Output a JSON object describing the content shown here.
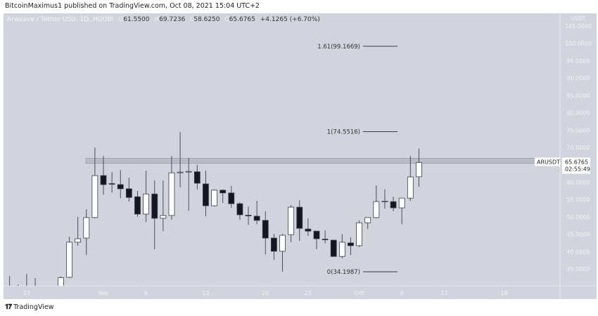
{
  "publisher_line": "BitcoinMaximus1 published on TradingView.com, Oct 08, 2021 15:04 UTC+2",
  "legend": {
    "symbol": "Arweave / Tether USD, 1D, HUOBI",
    "o_label": "O",
    "o": "61.5500",
    "h_label": "H",
    "h": "69.7236",
    "l_label": "L",
    "l": "58.6250",
    "c_label": "C",
    "c": "65.6765",
    "change": "+4.1265 (+6.70%)"
  },
  "price_label": {
    "ticker": "ARUSDT",
    "price": "65.6765",
    "countdown": "02:55:49"
  },
  "footer": {
    "brand": "TradingView",
    "logo_text": "TV"
  },
  "colors": {
    "background": "#d2d4dd",
    "up_body": "#ffffff",
    "down_body": "#131722",
    "wick": "#4a4e5a",
    "zone": "#b9bcc6"
  },
  "chart_data": {
    "type": "candlestick",
    "title": "",
    "ylabel": "USDT",
    "ylim": [
      30.2,
      108.5
    ],
    "y_ticks": [
      "105.0000",
      "100.0000",
      "95.0000",
      "90.0000",
      "85.0000",
      "80.0000",
      "75.0000",
      "70.0000",
      "60.0000",
      "55.0000",
      "50.0000",
      "45.0000",
      "40.0000",
      "35.0000"
    ],
    "x_ticks": [
      {
        "date": "2021-08-23",
        "label": "23"
      },
      {
        "date": "2021-09-01",
        "label": "Sep"
      },
      {
        "date": "2021-09-06",
        "label": "6"
      },
      {
        "date": "2021-09-13",
        "label": "13"
      },
      {
        "date": "2021-09-20",
        "label": "20"
      },
      {
        "date": "2021-09-25",
        "label": "25"
      },
      {
        "date": "2021-10-01",
        "label": "Oct"
      },
      {
        "date": "2021-10-06",
        "label": "6"
      },
      {
        "date": "2021-10-11",
        "label": "11"
      },
      {
        "date": "2021-10-18",
        "label": "18"
      }
    ],
    "resistance_zone": [
      65.4,
      66.9
    ],
    "fib_levels": [
      {
        "label": "1.61(99.1669)",
        "value": 99.1669
      },
      {
        "label": "1(74.5516)",
        "value": 74.5516
      },
      {
        "label": "0(34.1987)",
        "value": 34.1987
      }
    ],
    "candles": [
      {
        "date": "2021-08-21",
        "o": 29.0,
        "h": 33.0,
        "l": 28.0,
        "c": 29.5
      },
      {
        "date": "2021-08-22",
        "o": 29.5,
        "h": 30.5,
        "l": 28.5,
        "c": 29.0
      },
      {
        "date": "2021-08-23",
        "o": 29.0,
        "h": 33.6,
        "l": 28.0,
        "c": 29.5
      },
      {
        "date": "2021-08-24",
        "o": 29.5,
        "h": 32.4,
        "l": 28.0,
        "c": 29.0
      },
      {
        "date": "2021-08-27",
        "o": 29.5,
        "h": 32.9,
        "l": 29.0,
        "c": 32.5
      },
      {
        "date": "2021-08-28",
        "o": 32.6,
        "h": 44.3,
        "l": 32.4,
        "c": 42.7
      },
      {
        "date": "2021-08-29",
        "o": 42.7,
        "h": 50.0,
        "l": 41.7,
        "c": 43.7
      },
      {
        "date": "2021-08-30",
        "o": 43.9,
        "h": 52.2,
        "l": 39.0,
        "c": 49.8
      },
      {
        "date": "2021-08-31",
        "o": 49.8,
        "h": 70.0,
        "l": 49.6,
        "c": 61.9
      },
      {
        "date": "2021-09-01",
        "o": 61.9,
        "h": 67.6,
        "l": 56.4,
        "c": 59.3
      },
      {
        "date": "2021-09-02",
        "o": 59.6,
        "h": 62.9,
        "l": 57.0,
        "c": 59.4
      },
      {
        "date": "2021-09-03",
        "o": 59.3,
        "h": 63.5,
        "l": 55.4,
        "c": 58.1
      },
      {
        "date": "2021-09-04",
        "o": 58.1,
        "h": 61.3,
        "l": 54.4,
        "c": 55.6
      },
      {
        "date": "2021-09-05",
        "o": 55.8,
        "h": 57.5,
        "l": 50.0,
        "c": 50.8
      },
      {
        "date": "2021-09-06",
        "o": 50.8,
        "h": 63.3,
        "l": 48.5,
        "c": 56.6
      },
      {
        "date": "2021-09-07",
        "o": 56.6,
        "h": 60.5,
        "l": 40.7,
        "c": 49.6
      },
      {
        "date": "2021-09-08",
        "o": 49.6,
        "h": 60.5,
        "l": 45.9,
        "c": 50.4
      },
      {
        "date": "2021-09-09",
        "o": 50.4,
        "h": 67.6,
        "l": 49.2,
        "c": 62.7
      },
      {
        "date": "2021-09-10",
        "o": 62.8,
        "h": 74.4,
        "l": 58.5,
        "c": 62.9
      },
      {
        "date": "2021-09-11",
        "o": 63.0,
        "h": 67.0,
        "l": 51.8,
        "c": 63.1
      },
      {
        "date": "2021-09-12",
        "o": 63.0,
        "h": 65.0,
        "l": 57.9,
        "c": 59.7
      },
      {
        "date": "2021-09-13",
        "o": 59.5,
        "h": 63.3,
        "l": 50.2,
        "c": 53.2
      },
      {
        "date": "2021-09-14",
        "o": 53.2,
        "h": 57.9,
        "l": 53.0,
        "c": 57.7
      },
      {
        "date": "2021-09-15",
        "o": 57.7,
        "h": 57.9,
        "l": 54.0,
        "c": 56.9
      },
      {
        "date": "2021-09-16",
        "o": 56.9,
        "h": 58.9,
        "l": 52.6,
        "c": 53.8
      },
      {
        "date": "2021-09-17",
        "o": 53.8,
        "h": 54.2,
        "l": 49.2,
        "c": 50.6
      },
      {
        "date": "2021-09-18",
        "o": 50.5,
        "h": 53.0,
        "l": 47.7,
        "c": 50.4
      },
      {
        "date": "2021-09-19",
        "o": 50.2,
        "h": 54.6,
        "l": 47.9,
        "c": 49.0
      },
      {
        "date": "2021-09-20",
        "o": 49.0,
        "h": 51.6,
        "l": 39.2,
        "c": 43.9
      },
      {
        "date": "2021-09-21",
        "o": 43.9,
        "h": 45.1,
        "l": 37.6,
        "c": 40.1
      },
      {
        "date": "2021-09-22",
        "o": 40.1,
        "h": 45.1,
        "l": 34.2,
        "c": 44.7
      },
      {
        "date": "2021-09-23",
        "o": 44.9,
        "h": 53.4,
        "l": 42.7,
        "c": 52.8
      },
      {
        "date": "2021-09-24",
        "o": 52.8,
        "h": 54.8,
        "l": 43.1,
        "c": 46.7
      },
      {
        "date": "2021-09-25",
        "o": 46.5,
        "h": 49.6,
        "l": 44.5,
        "c": 45.9
      },
      {
        "date": "2021-09-26",
        "o": 45.9,
        "h": 45.9,
        "l": 40.7,
        "c": 43.7
      },
      {
        "date": "2021-09-27",
        "o": 43.6,
        "h": 46.1,
        "l": 42.3,
        "c": 43.5
      },
      {
        "date": "2021-09-28",
        "o": 43.3,
        "h": 43.4,
        "l": 38.5,
        "c": 38.6
      },
      {
        "date": "2021-09-29",
        "o": 38.6,
        "h": 45.1,
        "l": 38.0,
        "c": 42.7
      },
      {
        "date": "2021-09-30",
        "o": 42.5,
        "h": 44.1,
        "l": 39.0,
        "c": 41.7
      },
      {
        "date": "2021-10-01",
        "o": 41.7,
        "h": 49.0,
        "l": 41.3,
        "c": 48.3
      },
      {
        "date": "2021-10-02",
        "o": 48.3,
        "h": 49.8,
        "l": 46.5,
        "c": 49.8
      },
      {
        "date": "2021-10-03",
        "o": 49.8,
        "h": 59.1,
        "l": 49.6,
        "c": 54.4
      },
      {
        "date": "2021-10-04",
        "o": 54.4,
        "h": 57.9,
        "l": 52.4,
        "c": 54.5
      },
      {
        "date": "2021-10-05",
        "o": 54.4,
        "h": 55.8,
        "l": 51.6,
        "c": 52.6
      },
      {
        "date": "2021-10-06",
        "o": 52.6,
        "h": 55.4,
        "l": 47.9,
        "c": 55.4
      },
      {
        "date": "2021-10-07",
        "o": 55.4,
        "h": 67.6,
        "l": 54.6,
        "c": 61.5
      },
      {
        "date": "2021-10-08",
        "o": 61.55,
        "h": 69.7236,
        "l": 58.625,
        "c": 65.6765
      }
    ]
  }
}
